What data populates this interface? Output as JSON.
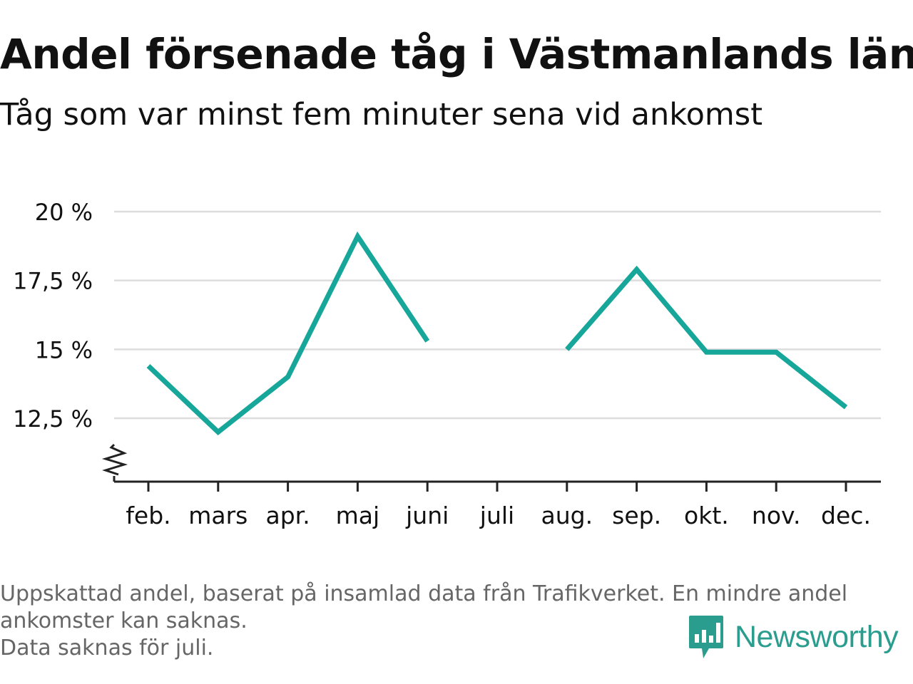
{
  "header": {
    "title": "Andel försenade tåg i Västmanlands län",
    "subtitle": "Tåg som var minst fem minuter sena vid ankomst"
  },
  "footer": {
    "lines": [
      "Uppskattad andel, baserat på insamlad data från Trafikverket. En mindre andel",
      "ankomster kan saknas.",
      "Data saknas för juli."
    ],
    "brand": "Newsworthy"
  },
  "colors": {
    "line": "#16a69a",
    "grid": "#dddddd",
    "axis": "#222222",
    "text": "#111111",
    "footnote": "#666666",
    "brand": "#2a9d8f"
  },
  "chart_data": {
    "type": "line",
    "title": "Andel försenade tåg i Västmanlands län",
    "subtitle": "Tåg som var minst fem minuter sena vid ankomst",
    "categories": [
      "feb.",
      "mars",
      "apr.",
      "maj",
      "juni",
      "juli",
      "aug.",
      "sep.",
      "okt.",
      "nov.",
      "dec."
    ],
    "series": [
      {
        "values": [
          14.4,
          12.0,
          14.0,
          19.1,
          15.3,
          null,
          15.0,
          17.9,
          14.9,
          14.9,
          12.9
        ]
      }
    ],
    "ylim": [
      10.2,
      20.0
    ],
    "yticks": [
      12.5,
      15,
      17.5,
      20
    ],
    "ytick_labels": [
      "12,5 %",
      "15 %",
      "17,5 %",
      "20 %"
    ],
    "axis_break": true,
    "grid": true,
    "legend": "none"
  }
}
